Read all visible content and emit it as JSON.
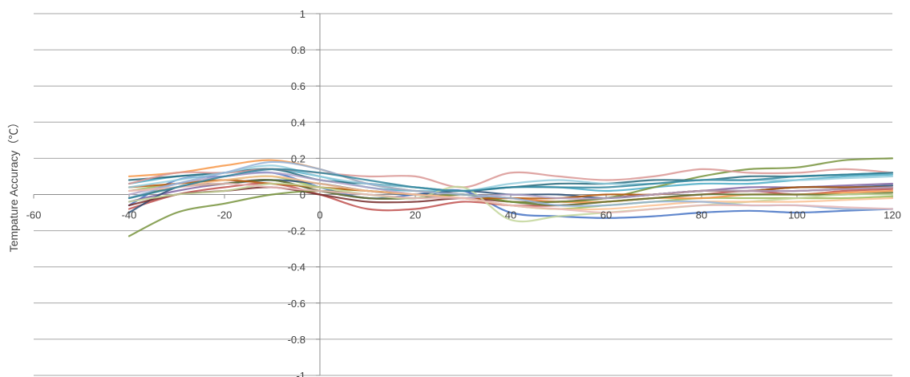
{
  "chart_data": {
    "type": "line",
    "title": "",
    "xlabel": "",
    "ylabel": "Tempature Accuracy（℃）",
    "xlim": [
      -60,
      120
    ],
    "ylim": [
      -1,
      1
    ],
    "xticks": [
      -60,
      -40,
      -20,
      0,
      20,
      40,
      60,
      80,
      100,
      120
    ],
    "yticks": [
      1,
      0.8,
      0.6,
      0.4,
      0.2,
      0,
      -0.2,
      -0.4,
      -0.6,
      -0.8,
      -1
    ],
    "xtick_labels": [
      "-60",
      "-40",
      "-20",
      "0",
      "20",
      "40",
      "60",
      "80",
      "100",
      "120"
    ],
    "ytick_labels": [
      "1",
      "0.8",
      "0.6",
      "0.4",
      "0.2",
      "0",
      "-0.2",
      "-0.4",
      "-0.6",
      "-0.8",
      "-1"
    ],
    "grid": true,
    "legend": "none",
    "x": [
      -40,
      -30,
      -20,
      -10,
      0,
      10,
      20,
      30,
      40,
      50,
      60,
      70,
      80,
      90,
      100,
      110,
      120
    ],
    "series": [
      {
        "color": "#4472c4",
        "values": [
          -0.06,
          0.08,
          0.1,
          0.12,
          0.04,
          -0.02,
          0.0,
          0.02,
          -0.1,
          -0.12,
          -0.13,
          -0.12,
          -0.1,
          -0.09,
          -0.1,
          -0.09,
          -0.08
        ]
      },
      {
        "color": "#c0504d",
        "values": [
          -0.08,
          0.0,
          0.04,
          0.06,
          0.0,
          -0.08,
          -0.08,
          -0.04,
          -0.06,
          -0.06,
          -0.04,
          -0.02,
          0.0,
          0.02,
          0.0,
          0.02,
          0.03
        ]
      },
      {
        "color": "#9bbb59",
        "values": [
          0.02,
          0.06,
          0.08,
          0.1,
          0.04,
          0.02,
          0.0,
          -0.02,
          -0.06,
          -0.08,
          -0.06,
          -0.04,
          -0.02,
          -0.02,
          -0.02,
          -0.02,
          -0.01
        ]
      },
      {
        "color": "#8064a2",
        "values": [
          -0.04,
          0.02,
          0.06,
          0.08,
          0.02,
          -0.02,
          -0.02,
          0.0,
          -0.02,
          -0.04,
          -0.02,
          0.0,
          0.02,
          0.04,
          0.04,
          0.05,
          0.06
        ]
      },
      {
        "color": "#4bacc6",
        "values": [
          0.06,
          0.1,
          0.12,
          0.14,
          0.1,
          0.04,
          0.02,
          0.02,
          0.04,
          0.04,
          0.02,
          0.04,
          0.06,
          0.06,
          0.08,
          0.1,
          0.11
        ]
      },
      {
        "color": "#f79646",
        "values": [
          0.1,
          0.12,
          0.16,
          0.19,
          0.14,
          0.06,
          0.02,
          0.0,
          -0.02,
          -0.04,
          -0.04,
          -0.02,
          -0.02,
          0.0,
          0.0,
          0.01,
          0.02
        ]
      },
      {
        "color": "#2c4d75",
        "values": [
          -0.1,
          0.04,
          0.06,
          0.08,
          0.06,
          0.02,
          0.0,
          0.02,
          0.0,
          0.0,
          -0.02,
          0.0,
          0.02,
          0.02,
          0.04,
          0.04,
          0.05
        ]
      },
      {
        "color": "#772c2a",
        "values": [
          -0.06,
          0.0,
          0.02,
          0.04,
          0.0,
          -0.04,
          -0.04,
          -0.02,
          -0.04,
          -0.04,
          -0.02,
          0.0,
          0.02,
          0.02,
          0.02,
          0.03,
          0.04
        ]
      },
      {
        "color": "#5f7530",
        "values": [
          -0.02,
          0.04,
          0.06,
          0.08,
          0.02,
          -0.02,
          -0.02,
          0.0,
          -0.04,
          -0.06,
          -0.04,
          -0.02,
          0.0,
          0.0,
          0.0,
          0.0,
          0.01
        ]
      },
      {
        "color": "#77933c",
        "values": [
          -0.23,
          -0.1,
          -0.05,
          0.0,
          0.02,
          0.0,
          -0.02,
          0.0,
          -0.04,
          -0.04,
          -0.02,
          0.04,
          0.1,
          0.14,
          0.15,
          0.19,
          0.2
        ]
      },
      {
        "color": "#276a7c",
        "values": [
          0.08,
          0.1,
          0.12,
          0.14,
          0.08,
          0.06,
          0.04,
          0.02,
          0.04,
          0.06,
          0.06,
          0.08,
          0.08,
          0.1,
          0.1,
          0.11,
          0.12
        ]
      },
      {
        "color": "#b65708",
        "values": [
          0.04,
          0.06,
          0.08,
          0.06,
          0.04,
          0.02,
          0.0,
          -0.02,
          -0.02,
          -0.02,
          0.0,
          0.0,
          0.02,
          0.02,
          0.04,
          0.04,
          0.04
        ]
      },
      {
        "color": "#d99694",
        "values": [
          0.06,
          0.12,
          0.12,
          0.14,
          0.12,
          0.1,
          0.1,
          0.04,
          0.12,
          0.1,
          0.08,
          0.1,
          0.14,
          0.12,
          0.12,
          0.14,
          0.12
        ]
      },
      {
        "color": "#c3d69b",
        "values": [
          -0.04,
          0.0,
          0.02,
          0.06,
          0.04,
          0.0,
          -0.02,
          0.04,
          -0.14,
          -0.12,
          -0.1,
          -0.08,
          -0.06,
          -0.04,
          -0.02,
          0.0,
          0.0
        ]
      },
      {
        "color": "#b3a2c7",
        "values": [
          0.0,
          0.06,
          0.1,
          0.12,
          0.08,
          0.04,
          0.0,
          -0.02,
          0.0,
          -0.02,
          -0.02,
          0.0,
          0.02,
          0.02,
          0.02,
          0.03,
          0.04
        ]
      },
      {
        "color": "#93cddd",
        "values": [
          0.04,
          0.08,
          0.12,
          0.16,
          0.1,
          0.06,
          0.04,
          0.02,
          0.06,
          0.08,
          0.06,
          0.06,
          0.08,
          0.08,
          0.08,
          0.09,
          0.1
        ]
      },
      {
        "color": "#fac090",
        "values": [
          0.02,
          0.04,
          0.08,
          0.1,
          0.06,
          0.02,
          0.0,
          -0.02,
          -0.06,
          -0.08,
          -0.08,
          -0.06,
          -0.04,
          -0.04,
          -0.04,
          -0.03,
          -0.02
        ]
      },
      {
        "color": "#95b3d7",
        "values": [
          -0.02,
          0.06,
          0.12,
          0.18,
          0.14,
          0.06,
          0.02,
          0.0,
          -0.02,
          -0.06,
          -0.06,
          -0.04,
          -0.04,
          -0.06,
          -0.06,
          -0.08,
          -0.08
        ]
      },
      {
        "color": "#e6b9b8",
        "values": [
          0.02,
          0.04,
          0.06,
          0.04,
          0.02,
          0.0,
          -0.02,
          -0.02,
          -0.06,
          -0.08,
          -0.1,
          -0.08,
          -0.06,
          -0.06,
          -0.06,
          -0.07,
          -0.08
        ]
      },
      {
        "color": "#31859c",
        "values": [
          -0.02,
          0.04,
          0.1,
          0.14,
          0.12,
          0.08,
          0.04,
          0.02,
          0.04,
          0.04,
          0.04,
          0.06,
          0.08,
          0.08,
          0.1,
          0.11,
          0.12
        ]
      }
    ]
  }
}
